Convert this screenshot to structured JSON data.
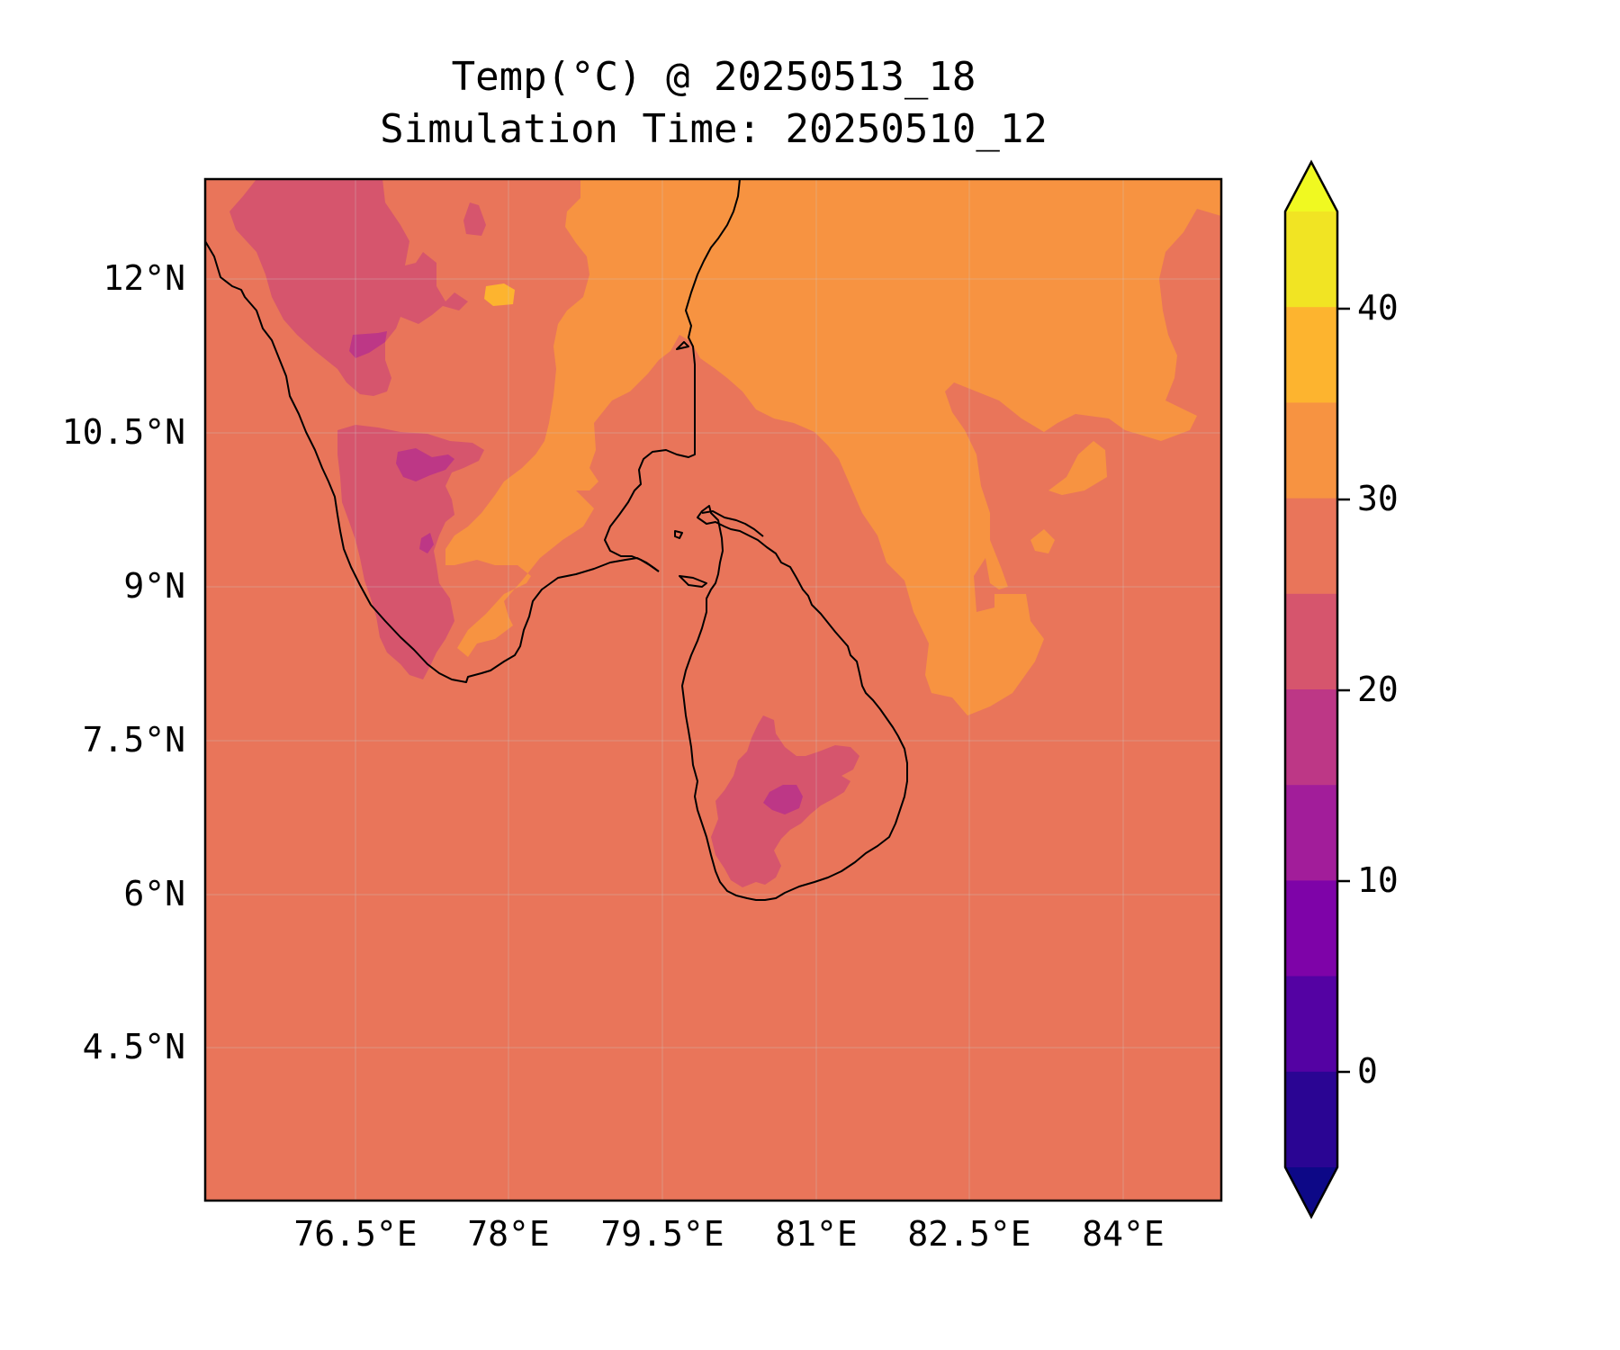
{
  "title": {
    "line1": "Temp(°C) @ 20250513_18",
    "line2": "Simulation Time: 20250510_12"
  },
  "map": {
    "x_ticks": [
      "76.5°E",
      "78°E",
      "79.5°E",
      "81°E",
      "82.5°E",
      "84°E"
    ],
    "y_ticks": [
      "12°N",
      "10.5°N",
      "9°N",
      "7.5°N",
      "6°N",
      "4.5°N"
    ],
    "background_fill": "#e9755a"
  },
  "colorbar": {
    "tick_labels": [
      "40",
      "30",
      "20",
      "10",
      "0"
    ],
    "levels_from_top": [
      {
        "range": "> 45",
        "color": "#f0f921"
      },
      {
        "range": "40-45",
        "color": "#f1e423"
      },
      {
        "range": "35-40",
        "color": "#fdb42f"
      },
      {
        "range": "30-35",
        "color": "#f79341"
      },
      {
        "range": "25-30",
        "color": "#e9755a"
      },
      {
        "range": "20-25",
        "color": "#d6556d"
      },
      {
        "range": "15-20",
        "color": "#bd3786"
      },
      {
        "range": "10-15",
        "color": "#a21d9a"
      },
      {
        "range": "5-10",
        "color": "#7e03a8"
      },
      {
        "range": "0-5",
        "color": "#5402a3"
      },
      {
        "range": "-5-0",
        "color": "#2a0593"
      },
      {
        "range": "< -5",
        "color": "#0d0887"
      }
    ]
  },
  "colors": {
    "warm_30_35": "#f79341",
    "mid_25_30": "#e9755a",
    "cool_20_25": "#d6556d",
    "cold_15_20": "#bd3786",
    "hot_35_40": "#fdb42f",
    "coastline": "#000000"
  }
}
